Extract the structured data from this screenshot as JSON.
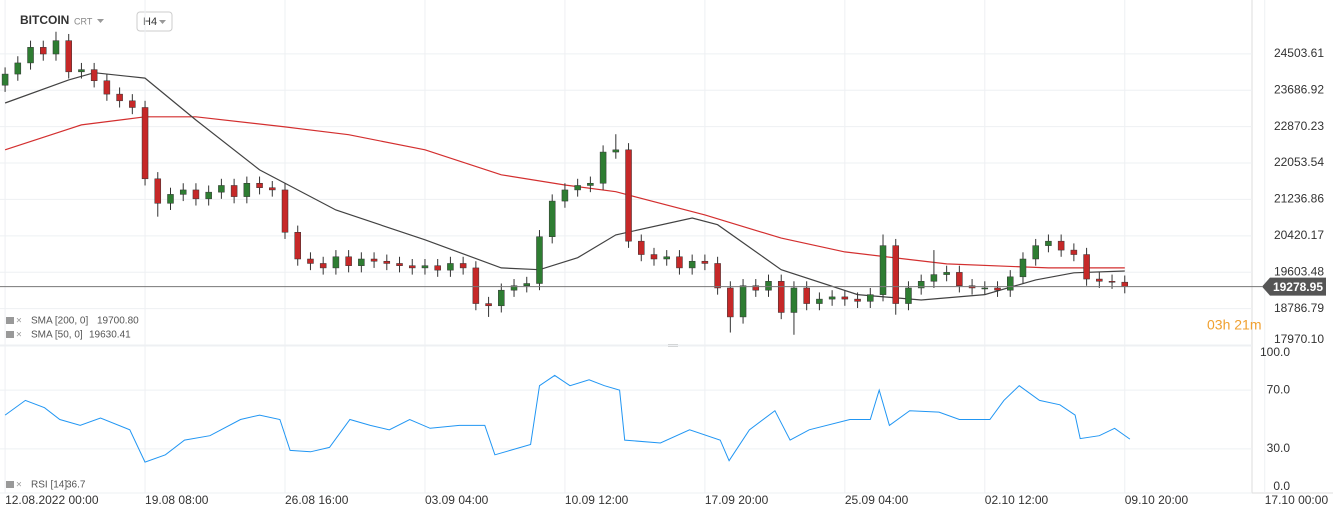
{
  "chart_data": {
    "type": "candlestick",
    "title": "BITCOIN",
    "instrument_type": "CRT",
    "timeframe": "H4",
    "countdown": "03h 21m",
    "xlim": [
      -0.4,
      98
    ],
    "xticks": [
      {
        "value": 0,
        "label": "12.08.2022  00:00"
      },
      {
        "value": 11,
        "label": "19.08  08:00"
      },
      {
        "value": 22,
        "label": "26.08  16:00"
      },
      {
        "value": 33,
        "label": "03.09  04:00"
      },
      {
        "value": 44,
        "label": "10.09  12:00"
      },
      {
        "value": 55,
        "label": "17.09  20:00"
      },
      {
        "value": 66,
        "label": "25.09  04:00"
      },
      {
        "value": 77,
        "label": "02.10  12:00"
      },
      {
        "value": 88,
        "label": "09.10  20:00"
      },
      {
        "value": 99,
        "label": "17.10  00:00"
      }
    ],
    "ylim": [
      17970.1,
      25600
    ],
    "yticks": [
      24503.61,
      23686.92,
      22870.23,
      22053.54,
      21236.86,
      20420.17,
      19603.48,
      18786.79,
      {
        "value": 17970.1,
        "label": "17970.10"
      }
    ],
    "grid": true,
    "up_color": "#2e7d32",
    "down_color": "#c62828",
    "last_price": 19278.95,
    "open": [
      23800,
      24050,
      24300,
      24650,
      24500,
      24800,
      24100,
      24150,
      23900,
      23600,
      23450,
      23300,
      21700,
      21150,
      21350,
      21450,
      21250,
      21400,
      21550,
      21300,
      21600,
      21500,
      21450,
      20500,
      19900,
      19800,
      19700,
      19950,
      19750,
      19900,
      19850,
      19800,
      19750,
      19700,
      19750,
      19650,
      19800,
      19700,
      18900,
      18850,
      19200,
      19300,
      19350,
      20400,
      21200,
      21450,
      21550,
      21600,
      22300,
      22350,
      20300,
      20000,
      19900,
      19950,
      19700,
      19850,
      19800,
      19250,
      18600,
      19300,
      19200,
      19400,
      18700,
      19250,
      18900,
      19000,
      19050,
      19000,
      18950,
      19100,
      20200,
      18900,
      19250,
      19400,
      19550,
      19600,
      19300,
      19250,
      19250,
      19200,
      19500,
      19900,
      20200,
      20300,
      20100,
      20000,
      19450,
      19400,
      19380
    ],
    "high": [
      24200,
      24450,
      24800,
      24800,
      25000,
      24950,
      24300,
      24300,
      24050,
      23750,
      23600,
      23450,
      21850,
      21500,
      21600,
      21600,
      21550,
      21700,
      21700,
      21750,
      21750,
      21650,
      21600,
      20650,
      20050,
      19950,
      20100,
      20100,
      20050,
      20050,
      20000,
      19950,
      19900,
      19900,
      19900,
      19950,
      19950,
      19850,
      19050,
      19350,
      19450,
      19500,
      20550,
      21350,
      21600,
      21700,
      21750,
      22450,
      22700,
      22500,
      20450,
      20150,
      20100,
      20100,
      20000,
      20000,
      19950,
      19400,
      19450,
      19450,
      19550,
      19550,
      19400,
      19400,
      19150,
      19200,
      19200,
      19150,
      19250,
      20450,
      20350,
      19400,
      19550,
      20100,
      19750,
      19750,
      19450,
      19400,
      19400,
      19650,
      20050,
      20350,
      20450,
      20450,
      20250,
      20150,
      19600,
      19550,
      19530
    ],
    "low": [
      23650,
      23900,
      24150,
      24350,
      24350,
      23950,
      23950,
      23750,
      23450,
      23300,
      23150,
      21550,
      20850,
      21000,
      21200,
      21100,
      21100,
      21250,
      21150,
      21150,
      21350,
      21300,
      20350,
      19750,
      19650,
      19550,
      19550,
      19600,
      19600,
      19700,
      19650,
      19600,
      19550,
      19550,
      19500,
      19500,
      19550,
      18750,
      18600,
      18700,
      19050,
      19150,
      19200,
      20250,
      21050,
      21300,
      21400,
      21450,
      22150,
      20150,
      19850,
      19750,
      19750,
      19550,
      19550,
      19650,
      19100,
      18250,
      18450,
      19050,
      19050,
      18550,
      18200,
      18750,
      18750,
      18850,
      18850,
      18800,
      18800,
      18950,
      18650,
      18750,
      19100,
      19250,
      19400,
      19150,
      19100,
      19100,
      19050,
      19050,
      19350,
      19750,
      20050,
      19950,
      19850,
      19300,
      19250,
      19230,
      19130
    ],
    "close": [
      24050,
      24300,
      24650,
      24500,
      24800,
      24100,
      24150,
      23900,
      23600,
      23450,
      23300,
      21700,
      21150,
      21350,
      21450,
      21250,
      21400,
      21550,
      21300,
      21600,
      21500,
      21450,
      20500,
      19900,
      19800,
      19700,
      19950,
      19750,
      19900,
      19850,
      19800,
      19750,
      19700,
      19750,
      19650,
      19800,
      19700,
      18900,
      18850,
      19200,
      19300,
      19350,
      20400,
      21200,
      21450,
      21550,
      21600,
      22300,
      22350,
      20300,
      20000,
      19900,
      19950,
      19700,
      19850,
      19800,
      19250,
      18600,
      19300,
      19200,
      19400,
      18700,
      19250,
      18900,
      19000,
      19050,
      19000,
      18950,
      19100,
      20200,
      18900,
      19250,
      19400,
      19550,
      19600,
      19300,
      19250,
      19250,
      19200,
      19500,
      19900,
      20200,
      20300,
      20100,
      20000,
      19450,
      19400,
      19380,
      19278.95
    ],
    "overlays": [
      {
        "name": "SMA [200, 0]",
        "color": "#d32f2f",
        "value_label": "19700.80",
        "x": [
          0,
          6,
          11,
          15,
          22,
          27,
          33,
          39,
          44,
          48,
          55,
          61,
          66,
          74,
          82,
          88
        ],
        "values": [
          22350,
          22910,
          23090,
          23090,
          22865,
          22690,
          22350,
          21790,
          21560,
          21410,
          20890,
          20370,
          20060,
          19790,
          19700,
          19700.8
        ]
      },
      {
        "name": "SMA [50, 0]",
        "color": "#424242",
        "value_label": "19630.41",
        "x": [
          0,
          5,
          7,
          11,
          15,
          20,
          26,
          33,
          39,
          42,
          45,
          48,
          54,
          56,
          61,
          67,
          72,
          77,
          81,
          84,
          88
        ],
        "values": [
          23400,
          23920,
          24080,
          23960,
          23020,
          21900,
          21000,
          20330,
          19700,
          19660,
          19930,
          20440,
          20820,
          20670,
          19660,
          19100,
          18980,
          19100,
          19430,
          19590,
          19630.41
        ]
      }
    ],
    "rsi": {
      "name": "RSI [14]",
      "color": "#2196f3",
      "ylim": [
        0,
        100
      ],
      "yticks": [
        {
          "value": 100,
          "label": "100.0"
        },
        {
          "value": 70,
          "label": "70.0"
        },
        {
          "value": 30,
          "label": "30.0"
        },
        {
          "value": 0,
          "label": "0.0"
        }
      ],
      "x": [
        0,
        1.6,
        3.1,
        4.3,
        5.9,
        7.5,
        9.8,
        11,
        12.6,
        14.1,
        16.1,
        18.5,
        20,
        21.6,
        22.4,
        24,
        25.5,
        27.1,
        28.7,
        30.2,
        31.8,
        33.4,
        35.7,
        37.7,
        38.5,
        39.7,
        41.3,
        42,
        43.2,
        44.4,
        45.9,
        47.1,
        48.3,
        48.7,
        51.5,
        53.8,
        56.2,
        56.9,
        58.5,
        60.5,
        61.7,
        63.2,
        66.4,
        68,
        68.7,
        69.5,
        71.1,
        73.4,
        75,
        77.4,
        78.5,
        79.7,
        81.3,
        82.9,
        84.1,
        84.5,
        86,
        87.2,
        88.4
      ],
      "values": [
        53,
        63,
        58,
        50,
        46,
        51,
        43,
        21,
        26,
        36,
        39,
        50,
        53,
        50,
        29,
        28,
        31,
        50,
        46,
        43,
        50,
        44,
        46,
        46,
        26,
        29,
        33,
        73,
        80,
        73,
        77,
        73,
        70,
        36,
        34,
        43,
        36,
        22,
        43,
        56,
        36,
        43,
        50,
        50,
        70,
        46,
        56,
        55,
        50,
        50,
        63,
        73,
        63,
        60,
        53,
        37,
        39,
        44,
        36.7
      ]
    }
  }
}
